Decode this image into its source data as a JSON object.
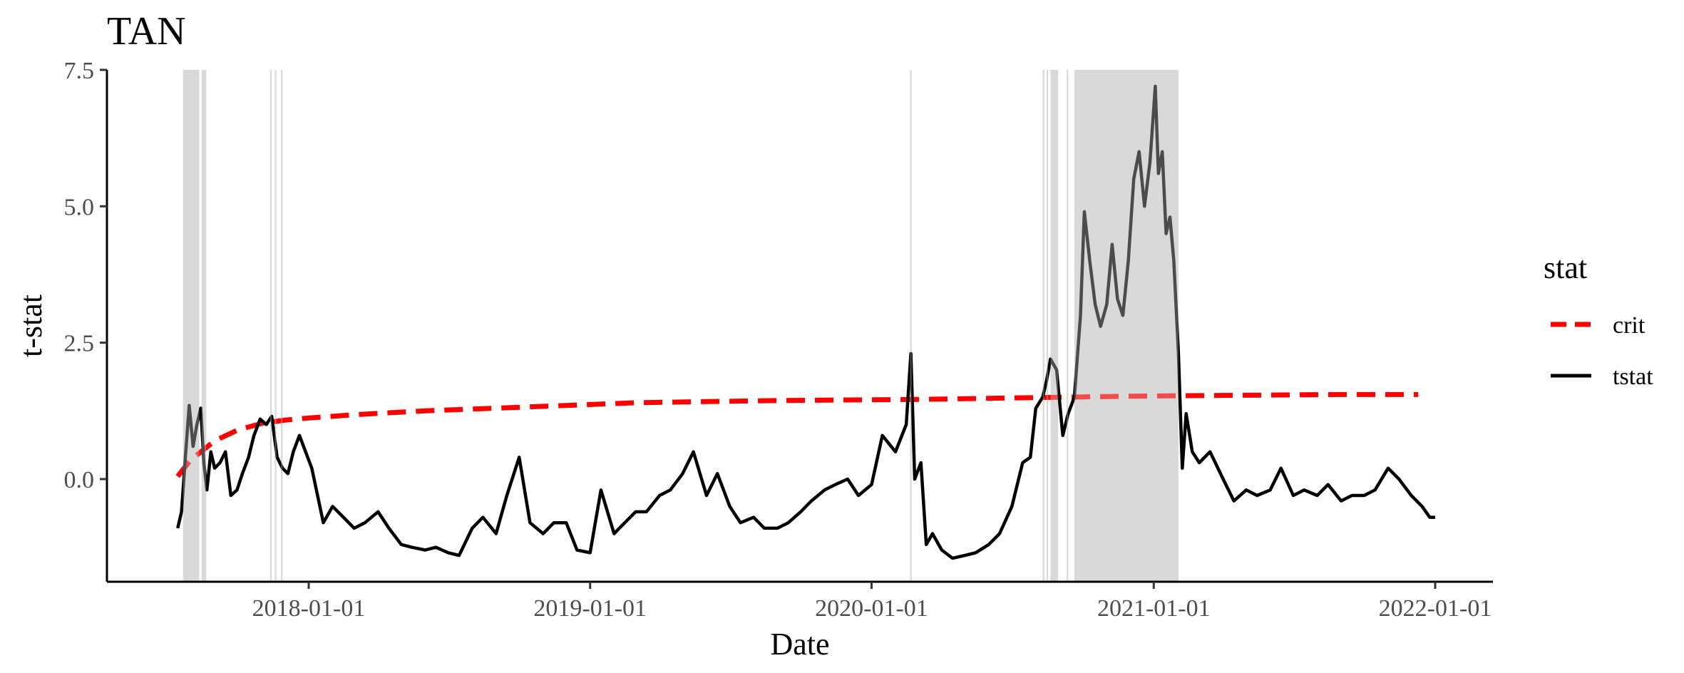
{
  "chart_data": {
    "type": "line",
    "title": "TAN",
    "xlabel": "Date",
    "ylabel": "t-stat",
    "x_range": [
      "2017-06-15",
      "2022-03-01"
    ],
    "ylim": [
      -1.9,
      7.6
    ],
    "x_ticks": [
      "2018-01-01",
      "2019-01-01",
      "2020-01-01",
      "2021-01-01",
      "2022-01-01"
    ],
    "y_ticks": [
      0.0,
      2.5,
      5.0,
      7.5
    ],
    "y_tick_labels": [
      "0.0",
      "2.5",
      "5.0",
      "7.5"
    ],
    "grid": false,
    "legend": {
      "title": "stat",
      "position": "right",
      "entries": [
        "crit",
        "tstat"
      ]
    },
    "colors": {
      "crit": "#ff0000",
      "tstat": "#000000",
      "shade": "#d9d9d9"
    },
    "shaded_periods": [
      [
        "2017-07-22",
        "2017-08-12"
      ],
      [
        "2017-08-15",
        "2017-08-21"
      ],
      [
        "2017-11-12",
        "2017-11-14"
      ],
      [
        "2017-11-18",
        "2017-11-20"
      ],
      [
        "2017-11-26",
        "2017-11-28"
      ],
      [
        "2020-02-20",
        "2020-02-22"
      ],
      [
        "2020-08-10",
        "2020-08-12"
      ],
      [
        "2020-08-15",
        "2020-08-17"
      ],
      [
        "2020-08-20",
        "2020-08-30"
      ],
      [
        "2020-09-10",
        "2020-09-12"
      ],
      [
        "2020-09-20",
        "2021-02-02"
      ]
    ],
    "series": [
      {
        "name": "crit",
        "style": "dashed",
        "x": [
          "2017-07-15",
          "2017-08-01",
          "2017-09-01",
          "2017-10-01",
          "2017-11-01",
          "2017-12-01",
          "2018-01-01",
          "2018-03-01",
          "2018-06-01",
          "2018-09-01",
          "2018-12-01",
          "2019-03-01",
          "2019-06-01",
          "2019-09-01",
          "2019-12-01",
          "2020-03-01",
          "2020-06-01",
          "2020-09-01",
          "2020-12-01",
          "2021-03-01",
          "2021-06-01",
          "2021-09-01",
          "2021-12-10"
        ],
        "values": [
          0.05,
          0.35,
          0.7,
          0.9,
          1.02,
          1.08,
          1.12,
          1.18,
          1.25,
          1.3,
          1.35,
          1.4,
          1.42,
          1.44,
          1.45,
          1.46,
          1.48,
          1.5,
          1.52,
          1.53,
          1.54,
          1.55,
          1.55
        ]
      },
      {
        "name": "tstat",
        "style": "solid",
        "x": [
          "2017-07-15",
          "2017-07-20",
          "2017-07-25",
          "2017-07-30",
          "2017-08-04",
          "2017-08-09",
          "2017-08-14",
          "2017-08-18",
          "2017-08-22",
          "2017-08-27",
          "2017-09-01",
          "2017-09-08",
          "2017-09-15",
          "2017-09-22",
          "2017-09-30",
          "2017-10-07",
          "2017-10-15",
          "2017-10-22",
          "2017-10-30",
          "2017-11-07",
          "2017-11-14",
          "2017-11-21",
          "2017-11-28",
          "2017-12-05",
          "2017-12-12",
          "2017-12-20",
          "2018-01-05",
          "2018-01-20",
          "2018-02-01",
          "2018-02-15",
          "2018-03-01",
          "2018-03-15",
          "2018-04-01",
          "2018-04-15",
          "2018-05-01",
          "2018-05-15",
          "2018-06-01",
          "2018-06-15",
          "2018-07-01",
          "2018-07-15",
          "2018-08-01",
          "2018-08-15",
          "2018-09-01",
          "2018-09-15",
          "2018-10-01",
          "2018-10-15",
          "2018-11-01",
          "2018-11-15",
          "2018-12-01",
          "2018-12-15",
          "2019-01-01",
          "2019-01-15",
          "2019-02-01",
          "2019-02-15",
          "2019-03-01",
          "2019-03-15",
          "2019-04-01",
          "2019-04-15",
          "2019-05-01",
          "2019-05-15",
          "2019-06-01",
          "2019-06-15",
          "2019-07-01",
          "2019-07-15",
          "2019-08-01",
          "2019-08-15",
          "2019-09-01",
          "2019-09-15",
          "2019-10-01",
          "2019-10-15",
          "2019-11-01",
          "2019-11-15",
          "2019-12-01",
          "2019-12-15",
          "2020-01-01",
          "2020-01-15",
          "2020-02-01",
          "2020-02-15",
          "2020-02-21",
          "2020-02-26",
          "2020-03-05",
          "2020-03-12",
          "2020-03-20",
          "2020-04-01",
          "2020-04-15",
          "2020-05-01",
          "2020-05-15",
          "2020-06-01",
          "2020-06-15",
          "2020-07-01",
          "2020-07-15",
          "2020-07-25",
          "2020-08-01",
          "2020-08-10",
          "2020-08-15",
          "2020-08-20",
          "2020-08-28",
          "2020-09-05",
          "2020-09-12",
          "2020-09-20",
          "2020-09-28",
          "2020-10-03",
          "2020-10-10",
          "2020-10-17",
          "2020-10-24",
          "2020-11-01",
          "2020-11-08",
          "2020-11-15",
          "2020-11-22",
          "2020-11-29",
          "2020-12-06",
          "2020-12-13",
          "2020-12-20",
          "2020-12-27",
          "2021-01-03",
          "2021-01-07",
          "2021-01-12",
          "2021-01-17",
          "2021-01-22",
          "2021-01-27",
          "2021-02-02",
          "2021-02-07",
          "2021-02-12",
          "2021-02-20",
          "2021-03-01",
          "2021-03-15",
          "2021-04-01",
          "2021-04-15",
          "2021-05-01",
          "2021-05-15",
          "2021-06-01",
          "2021-06-15",
          "2021-07-01",
          "2021-07-15",
          "2021-08-01",
          "2021-08-15",
          "2021-09-01",
          "2021-09-15",
          "2021-10-01",
          "2021-10-15",
          "2021-11-01",
          "2021-11-15",
          "2021-12-01",
          "2021-12-15",
          "2021-12-25",
          "2022-01-01"
        ],
        "values": [
          -0.9,
          -0.6,
          0.4,
          1.35,
          0.6,
          1.0,
          1.3,
          0.3,
          -0.2,
          0.5,
          0.2,
          0.3,
          0.5,
          -0.3,
          -0.2,
          0.1,
          0.4,
          0.8,
          1.1,
          1.0,
          1.15,
          0.4,
          0.2,
          0.1,
          0.5,
          0.8,
          0.2,
          -0.8,
          -0.5,
          -0.7,
          -0.9,
          -0.8,
          -0.6,
          -0.9,
          -1.2,
          -1.25,
          -1.3,
          -1.25,
          -1.35,
          -1.4,
          -0.9,
          -0.7,
          -1.0,
          -0.3,
          0.4,
          -0.8,
          -1.0,
          -0.8,
          -0.8,
          -1.3,
          -1.35,
          -0.2,
          -1.0,
          -0.8,
          -0.6,
          -0.6,
          -0.3,
          -0.2,
          0.1,
          0.5,
          -0.3,
          0.1,
          -0.5,
          -0.8,
          -0.7,
          -0.9,
          -0.9,
          -0.8,
          -0.6,
          -0.4,
          -0.2,
          -0.1,
          0.0,
          -0.3,
          -0.1,
          0.8,
          0.5,
          1.0,
          2.3,
          0.0,
          0.3,
          -1.2,
          -1.0,
          -1.3,
          -1.45,
          -1.4,
          -1.35,
          -1.2,
          -1.0,
          -0.5,
          0.3,
          0.4,
          1.3,
          1.5,
          1.8,
          2.2,
          2.0,
          0.8,
          1.2,
          1.5,
          3.0,
          4.9,
          4.0,
          3.2,
          2.8,
          3.2,
          4.3,
          3.3,
          3.0,
          4.0,
          5.5,
          6.0,
          5.0,
          5.8,
          7.2,
          5.6,
          6.0,
          4.5,
          4.8,
          4.0,
          2.3,
          0.2,
          1.2,
          0.5,
          0.3,
          0.5,
          0.0,
          -0.4,
          -0.2,
          -0.3,
          -0.2,
          0.2,
          -0.3,
          -0.2,
          -0.3,
          -0.1,
          -0.4,
          -0.3,
          -0.3,
          -0.2,
          0.2,
          0.0,
          -0.3,
          -0.5,
          -0.7,
          -0.7
        ]
      }
    ]
  }
}
